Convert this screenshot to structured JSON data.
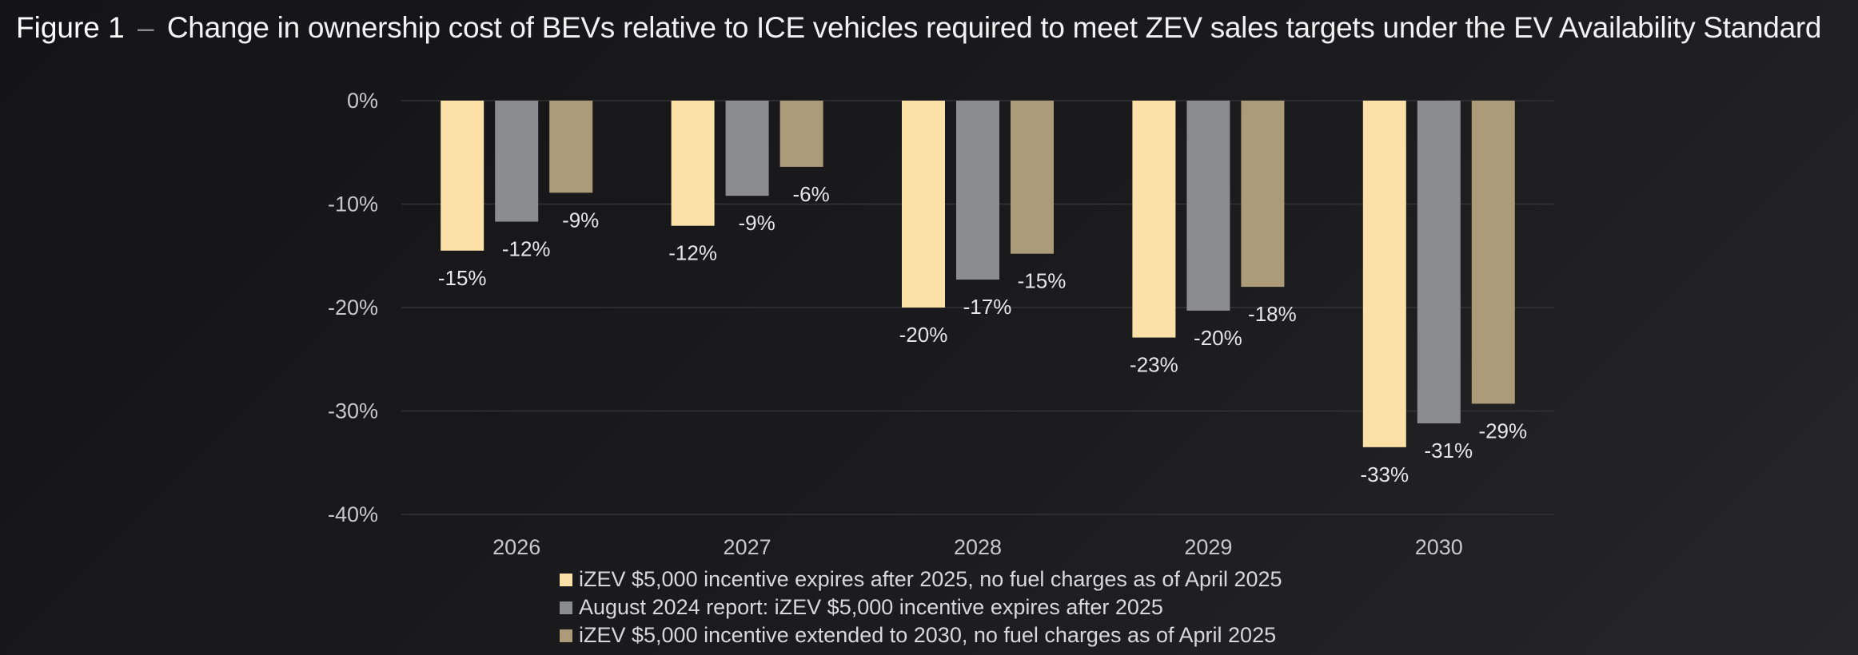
{
  "title": {
    "figure_label": "Figure 1",
    "separator": "–",
    "text": "Change in ownership cost of BEVs relative to ICE vehicles required to meet ZEV sales targets under the EV Availability Standard"
  },
  "colors": {
    "background": "#1b1b1d",
    "gridline": "#333335",
    "tick_text": "#c8c8c8",
    "label_text": "#e6e6e6"
  },
  "chart_data": {
    "type": "bar",
    "title": "Change in ownership cost of BEVs relative to ICE vehicles required to meet ZEV sales targets under the EV Availability Standard",
    "xlabel": "",
    "ylabel": "",
    "categories": [
      "2026",
      "2027",
      "2028",
      "2029",
      "2030"
    ],
    "ylim": [
      -40,
      0
    ],
    "yticks": [
      0,
      -10,
      -20,
      -30,
      -40
    ],
    "ytick_labels": [
      "0%",
      "-10%",
      "-20%",
      "-30%",
      "-40%"
    ],
    "grid": true,
    "legend_position": "bottom",
    "series": [
      {
        "name": "iZEV $5,000 incentive expires after 2025, no fuel charges as of April 2025",
        "color": "#fbe1a8",
        "values": [
          -14.5,
          -12.1,
          -20,
          -22.9,
          -33.5
        ],
        "labels": [
          "-15%",
          "-12%",
          "-20%",
          "-23%",
          "-33%"
        ]
      },
      {
        "name": "August 2024 report: iZEV $5,000 incentive expires after 2025",
        "color": "#8b8c8d",
        "values": [
          -11.7,
          -9.2,
          -17.3,
          -20.3,
          -31.2
        ],
        "labels": [
          "-12%",
          "-9%",
          "-17%",
          "-20%",
          "-31%"
        ]
      },
      {
        "name": "iZEV $5,000 incentive extended to 2030, no fuel charges as of April 2025",
        "color": "#ac9b78",
        "values": [
          -8.9,
          -6.4,
          -14.8,
          -18,
          -29.3
        ],
        "labels": [
          "-9%",
          "-6%",
          "-15%",
          "-18%",
          "-29%"
        ]
      }
    ]
  }
}
